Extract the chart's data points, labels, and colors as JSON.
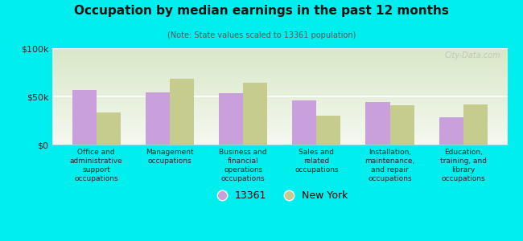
{
  "title": "Occupation by median earnings in the past 12 months",
  "subtitle": "(Note: State values scaled to 13361 population)",
  "categories": [
    "Office and\nadministrative\nsupport\noccupations",
    "Management\noccupations",
    "Business and\nfinancial\noperations\noccupations",
    "Sales and\nrelated\noccupations",
    "Installation,\nmaintenance,\nand repair\noccupations",
    "Education,\ntraining, and\nlibrary\noccupations"
  ],
  "values_13361": [
    57000,
    54000,
    53000,
    46000,
    44000,
    28000
  ],
  "values_ny": [
    33000,
    68000,
    64000,
    30000,
    41000,
    42000
  ],
  "color_13361": "#c9a0dc",
  "color_ny": "#c5cc8e",
  "background_color": "#00eeee",
  "plot_bg_top": "#d8e8c8",
  "plot_bg_bottom": "#f5f8f0",
  "ylim": [
    0,
    100000
  ],
  "ytick_labels": [
    "$0",
    "$50k",
    "$100k"
  ],
  "legend_label_13361": "13361",
  "legend_label_ny": "New York",
  "watermark": "City-Data.com"
}
